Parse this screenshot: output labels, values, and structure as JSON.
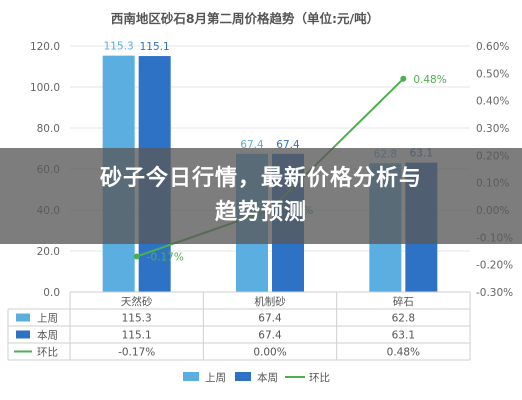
{
  "chart_data": {
    "type": "bar",
    "title": "西南地区砂石8月第二周价格趋势（单位:元/吨）",
    "categories": [
      "天然砂",
      "机制砂",
      "碎石"
    ],
    "series": [
      {
        "name": "上周",
        "type": "bar",
        "values": [
          115.3,
          67.4,
          62.8
        ],
        "labels": [
          "115.3",
          "67.4",
          "62.8"
        ],
        "color": "#5aaee0"
      },
      {
        "name": "本周",
        "type": "bar",
        "values": [
          115.1,
          67.4,
          63.1
        ],
        "labels": [
          "115.1",
          "67.4",
          "63.1"
        ],
        "color": "#2e72c6"
      },
      {
        "name": "环比",
        "type": "line",
        "axis": "right",
        "values": [
          -0.17,
          0.0,
          0.48
        ],
        "labels": [
          "-0.17%",
          "0.00%",
          "0.48%"
        ],
        "color": "#4caf50"
      }
    ],
    "ylim": [
      0,
      120
    ],
    "y_ticks": [
      "0.0",
      "20.0",
      "40.0",
      "60.0",
      "80.0",
      "100.0",
      "120.0"
    ],
    "y2lim": [
      -0.3,
      0.6
    ],
    "y2_ticks": [
      "-0.30%",
      "-0.20%",
      "-0.10%",
      "0.00%",
      "0.10%",
      "0.20%",
      "0.30%",
      "0.40%",
      "0.50%",
      "0.60%"
    ],
    "data_table": {
      "rows": [
        {
          "name": "上周",
          "cells": [
            "115.3",
            "67.4",
            "62.8"
          ]
        },
        {
          "name": "本周",
          "cells": [
            "115.1",
            "67.4",
            "63.1"
          ]
        },
        {
          "name": "环比",
          "cells": [
            "-0.17%",
            "0.00%",
            "0.48%"
          ]
        }
      ]
    },
    "legend": {
      "position": "bottom",
      "items": [
        "上周",
        "本周",
        "环比"
      ]
    },
    "grid": true
  },
  "overlay": {
    "line1": "砂子今日行情，最新价格分析与",
    "line2": "趋势预测"
  }
}
